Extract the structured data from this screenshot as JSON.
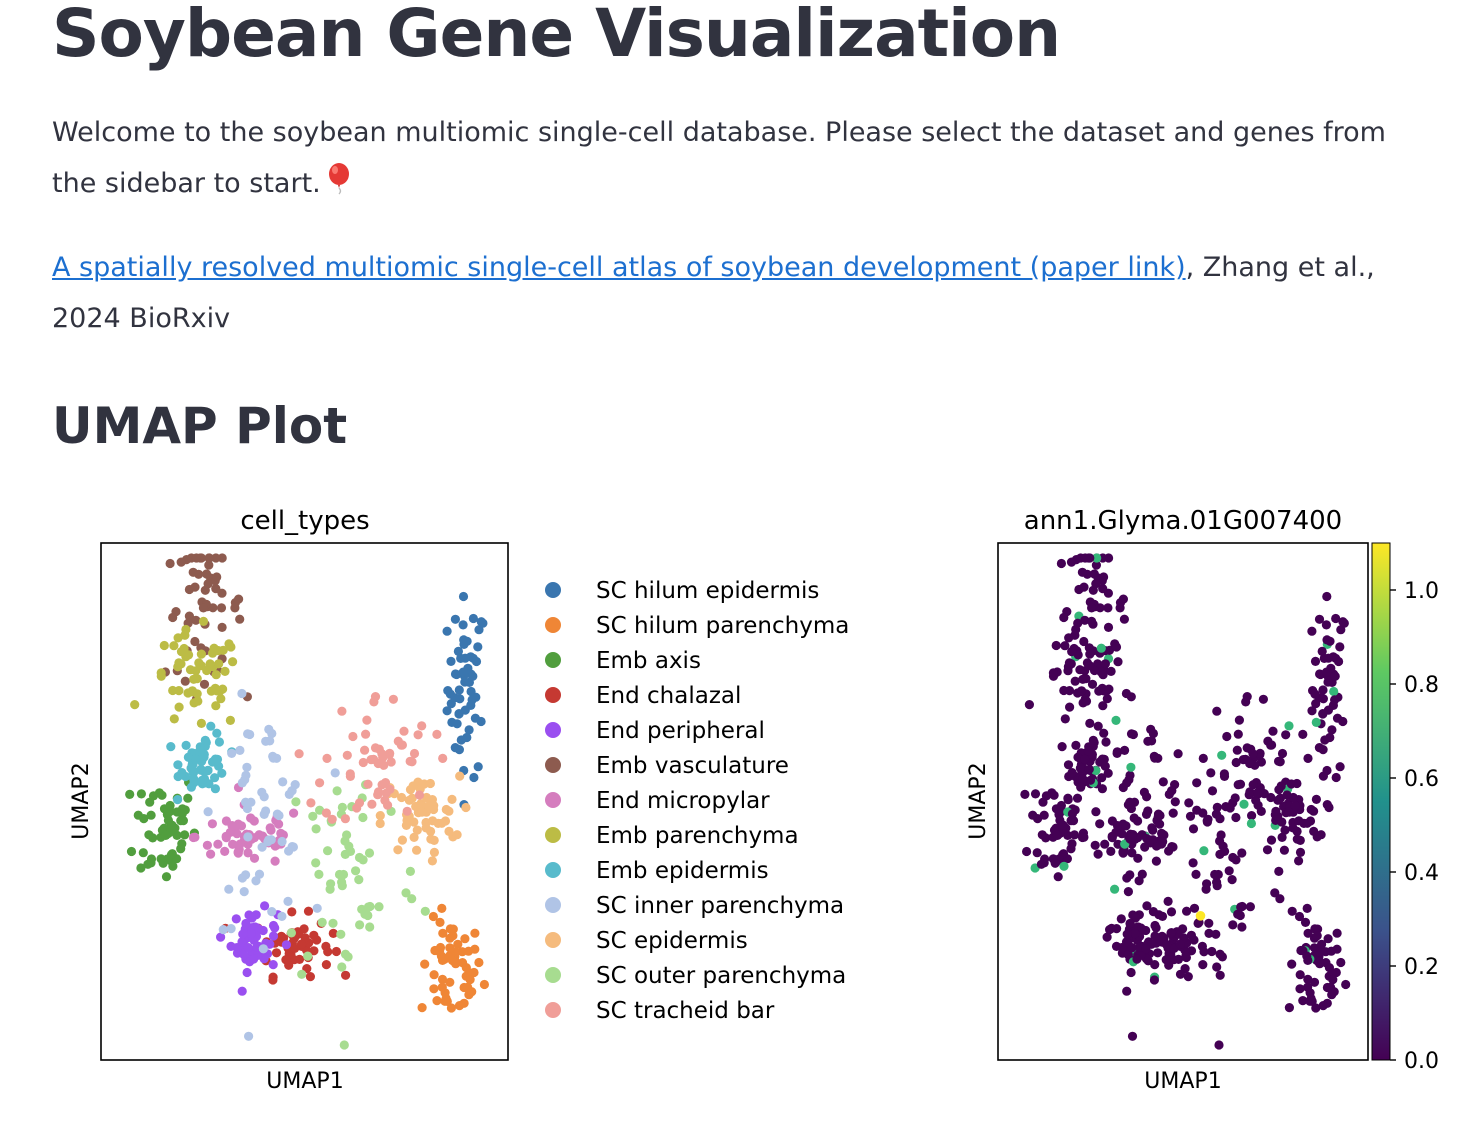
{
  "page": {
    "title": "Soybean Gene Visualization",
    "intro": "Welcome to the soybean multiomic single-cell database. Please select the dataset and genes from the sidebar to start.",
    "intro_icon": "balloon-icon",
    "paper_link_text": "A spatially resolved multiomic single-cell atlas of soybean development (paper link)",
    "citation_suffix": ", Zhang et al., 2024 BioRxiv",
    "section_title": "UMAP Plot"
  },
  "colors": {
    "link": "#1c6fd0",
    "text": "#31333f"
  },
  "chart_data": [
    {
      "type": "scatter",
      "title": "cell_types",
      "xlabel": "UMAP1",
      "ylabel": "UMAP2",
      "grid": false,
      "legend_position": "right",
      "xlim": [
        0,
        1
      ],
      "ylim": [
        0,
        1
      ],
      "series": [
        {
          "name": "SC hilum epidermis",
          "color": "#3a76af",
          "center": [
            0.92,
            0.73
          ],
          "spread": [
            0.025,
            0.09
          ]
        },
        {
          "name": "SC hilum parenchyma",
          "color": "#ef8636",
          "center": [
            0.88,
            0.16
          ],
          "spread": [
            0.04,
            0.05
          ]
        },
        {
          "name": "Emb axis",
          "color": "#519e3e",
          "center": [
            0.14,
            0.45
          ],
          "spread": [
            0.04,
            0.06
          ]
        },
        {
          "name": "End chalazal",
          "color": "#c53932",
          "center": [
            0.47,
            0.21
          ],
          "spread": [
            0.05,
            0.03
          ]
        },
        {
          "name": "End peripheral",
          "color": "#9a4ff0",
          "center": [
            0.37,
            0.22
          ],
          "spread": [
            0.03,
            0.03
          ]
        },
        {
          "name": "Emb vasculature",
          "color": "#8d5b4f",
          "center": [
            0.24,
            0.89
          ],
          "spread": [
            0.05,
            0.07
          ]
        },
        {
          "name": "End micropylar",
          "color": "#d57dbe",
          "center": [
            0.36,
            0.43
          ],
          "spread": [
            0.07,
            0.03
          ]
        },
        {
          "name": "Emb parenchyma",
          "color": "#bcbc45",
          "center": [
            0.22,
            0.74
          ],
          "spread": [
            0.06,
            0.05
          ]
        },
        {
          "name": "Emb epidermis",
          "color": "#58bbcc",
          "center": [
            0.24,
            0.58
          ],
          "spread": [
            0.03,
            0.03
          ]
        },
        {
          "name": "SC inner parenchyma",
          "color": "#b0c4e6",
          "center": [
            0.39,
            0.47
          ],
          "spread": [
            0.06,
            0.11
          ]
        },
        {
          "name": "SC epidermis",
          "color": "#f5bb7d",
          "center": [
            0.8,
            0.47
          ],
          "spread": [
            0.05,
            0.04
          ]
        },
        {
          "name": "SC outer parenchyma",
          "color": "#a7dc90",
          "center": [
            0.62,
            0.36
          ],
          "spread": [
            0.09,
            0.13
          ]
        },
        {
          "name": "SC tracheid bar",
          "color": "#f09e98",
          "center": [
            0.69,
            0.58
          ],
          "spread": [
            0.07,
            0.07
          ]
        }
      ]
    },
    {
      "type": "scatter",
      "title": "ann1.Glyma.01G007400",
      "xlabel": "UMAP1",
      "ylabel": "UMAP2",
      "grid": false,
      "colorbar": {
        "ticks": [
          "0.0",
          "0.2",
          "0.4",
          "0.6",
          "0.8",
          "1.0"
        ],
        "range": [
          0,
          1.1
        ],
        "colormap": "viridis"
      },
      "point_color_low": "#440154",
      "point_color_mid": "#35b779",
      "point_color_high": "#fde725"
    }
  ]
}
